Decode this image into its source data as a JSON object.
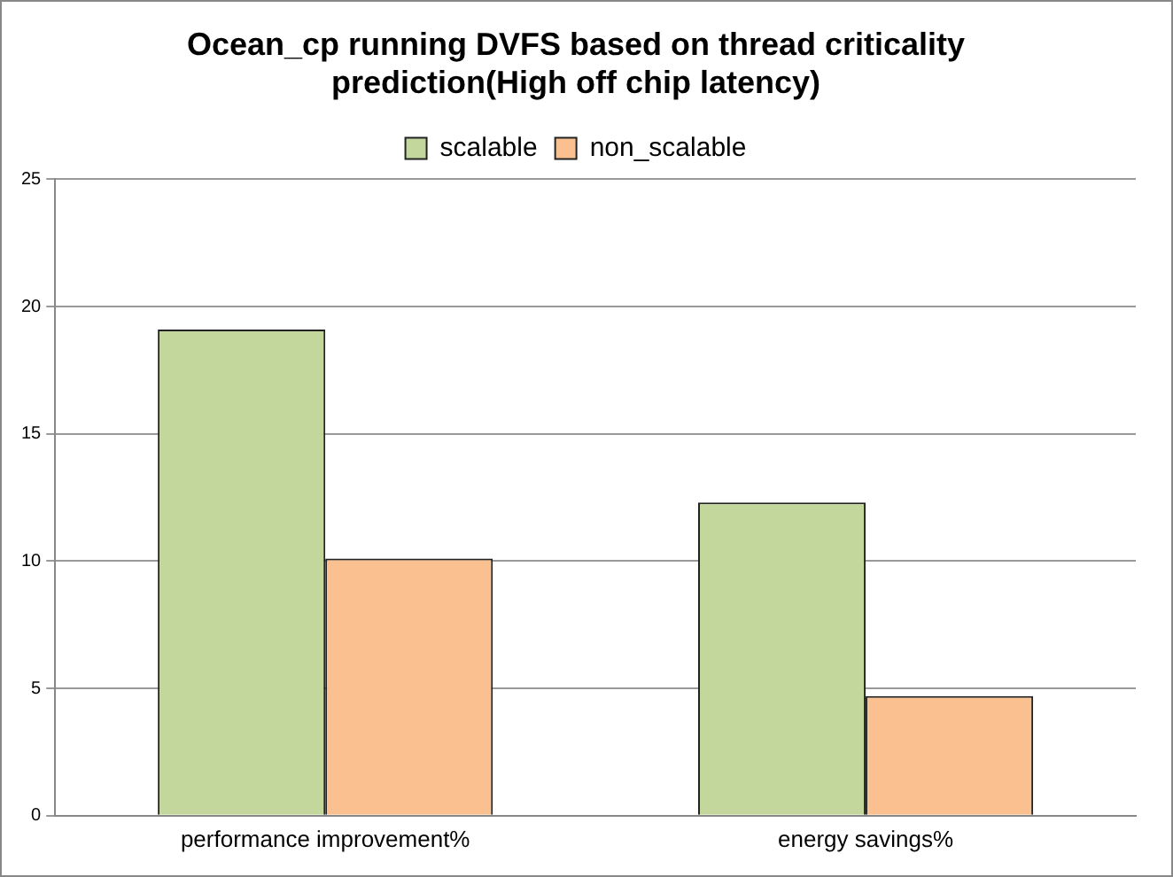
{
  "chart_data": {
    "type": "bar",
    "title": "Ocean_cp running DVFS based on thread criticality prediction(High off chip latency)",
    "categories": [
      "performance improvement%",
      "energy savings%"
    ],
    "series": [
      {
        "name": "scalable",
        "color": "#c3d69b",
        "values": [
          19.1,
          12.3
        ]
      },
      {
        "name": "non_scalable",
        "color": "#fac090",
        "values": [
          10.1,
          4.7
        ]
      }
    ],
    "ylim": [
      0,
      25
    ],
    "yticks": [
      0,
      5,
      10,
      15,
      20,
      25
    ],
    "grid": "y",
    "legend": "top"
  }
}
